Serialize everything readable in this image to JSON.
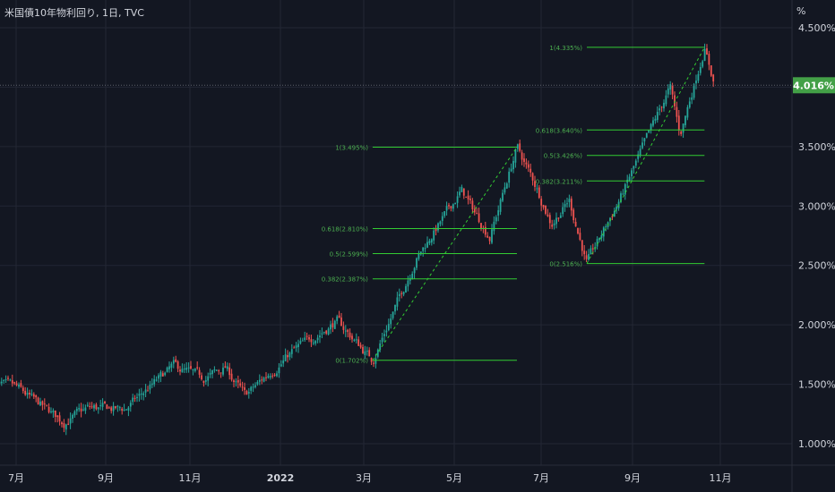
{
  "header": {
    "title": "米国債10年物利回り, 1日, TVC",
    "unit": "%"
  },
  "colors": {
    "background": "#131722",
    "grid": "#232734",
    "up": "#26a69a",
    "down": "#ef5350",
    "fib": "#33cc33",
    "fib_text": "#4caf50",
    "badge": "#43a047",
    "axis_text": "#d1d4dc"
  },
  "chart_data": {
    "type": "candlestick",
    "title": "米国債10年物利回り, 1日, TVC",
    "ylabel": "%",
    "ylim": [
      0.65,
      4.85
    ],
    "grid": true,
    "y_ticks": [
      "1.000%",
      "1.500%",
      "2.000%",
      "2.500%",
      "3.000%",
      "3.500%",
      "4.000%",
      "4.500%"
    ],
    "x_ticks": [
      "7月",
      "9月",
      "11月",
      "2022",
      "3月",
      "5月",
      "7月",
      "9月",
      "11月"
    ],
    "last_price_label": "4.016%",
    "last_price": 4.016,
    "price_path": [
      {
        "date": "2021-06-15",
        "value": 1.5
      },
      {
        "date": "2021-07-01",
        "value": 1.47
      },
      {
        "date": "2021-08-03",
        "value": 1.18
      },
      {
        "date": "2021-08-20",
        "value": 1.3
      },
      {
        "date": "2021-09-15",
        "value": 1.29
      },
      {
        "date": "2021-10-20",
        "value": 1.65
      },
      {
        "date": "2021-11-10",
        "value": 1.55
      },
      {
        "date": "2021-11-25",
        "value": 1.64
      },
      {
        "date": "2021-12-08",
        "value": 1.4
      },
      {
        "date": "2022-01-10",
        "value": 1.78
      },
      {
        "date": "2022-02-10",
        "value": 2.03
      },
      {
        "date": "2022-02-24",
        "value": 1.85
      },
      {
        "date": "2022-03-07",
        "value": 1.702
      },
      {
        "date": "2022-04-05",
        "value": 2.55
      },
      {
        "date": "2022-05-06",
        "value": 3.13
      },
      {
        "date": "2022-05-26",
        "value": 2.74
      },
      {
        "date": "2022-06-14",
        "value": 3.495
      },
      {
        "date": "2022-06-28",
        "value": 3.15
      },
      {
        "date": "2022-07-08",
        "value": 2.85
      },
      {
        "date": "2022-07-20",
        "value": 3.05
      },
      {
        "date": "2022-08-01",
        "value": 2.516
      },
      {
        "date": "2022-08-25",
        "value": 3.1
      },
      {
        "date": "2022-09-27",
        "value": 4.0
      },
      {
        "date": "2022-10-04",
        "value": 3.6
      },
      {
        "date": "2022-10-21",
        "value": 4.335
      },
      {
        "date": "2022-10-28",
        "value": 4.016
      }
    ],
    "fib_retracements": [
      {
        "levels": [
          {
            "label": "1(3.495%)",
            "value": 3.495
          },
          {
            "label": "0.618(2.810%)",
            "value": 2.81
          },
          {
            "label": "0.5(2.599%)",
            "value": 2.599
          },
          {
            "label": "0.382(2.387%)",
            "value": 2.387
          },
          {
            "label": "0(1.702%)",
            "value": 1.702
          }
        ],
        "from": {
          "date": "2022-03-07",
          "value": 1.702
        },
        "to": {
          "date": "2022-06-14",
          "value": 3.495
        }
      },
      {
        "levels": [
          {
            "label": "1(4.335%)",
            "value": 4.335
          },
          {
            "label": "0.618(3.640%)",
            "value": 3.64
          },
          {
            "label": "0.5(3.426%)",
            "value": 3.426
          },
          {
            "label": "0.382(3.211%)",
            "value": 3.211
          },
          {
            "label": "0(2.516%)",
            "value": 2.516
          }
        ],
        "from": {
          "date": "2022-08-01",
          "value": 2.516
        },
        "to": {
          "date": "2022-10-21",
          "value": 4.335
        }
      }
    ]
  }
}
